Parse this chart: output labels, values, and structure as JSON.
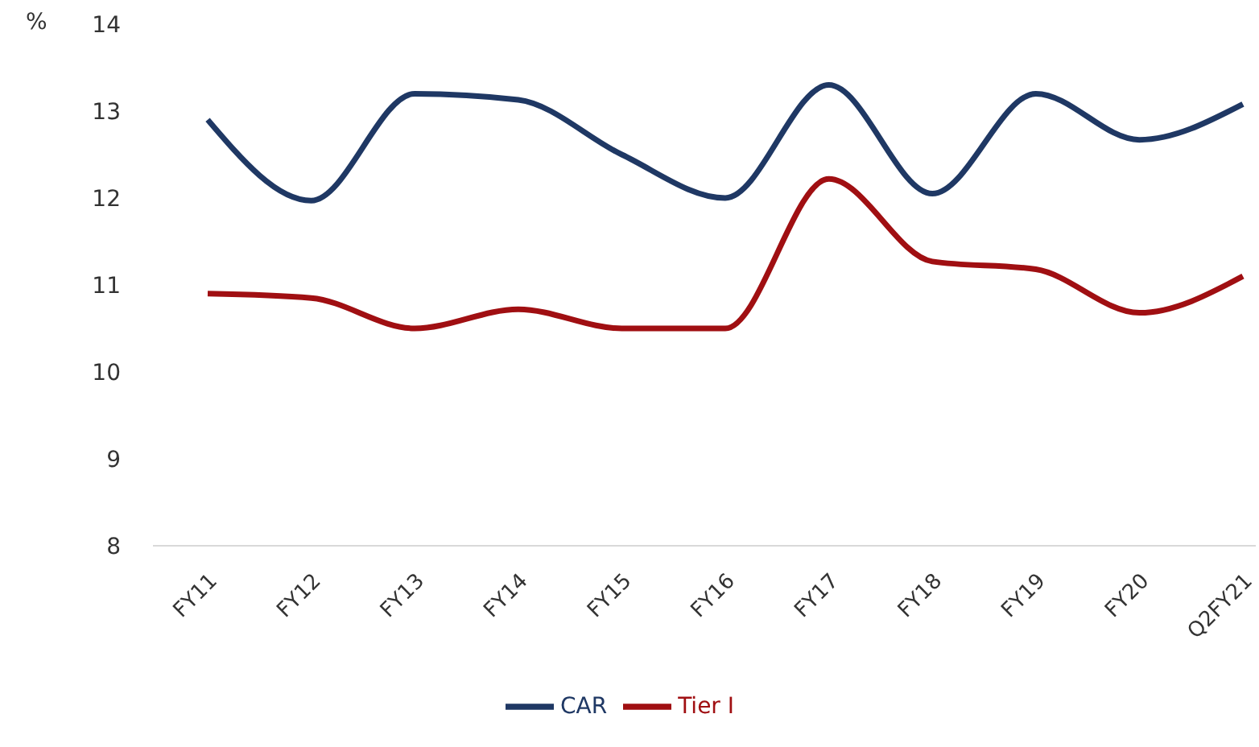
{
  "chart_data": {
    "type": "line",
    "ylabel": "%",
    "categories": [
      "FY11",
      "FY12",
      "FY13",
      "FY14",
      "FY15",
      "FY16",
      "FY17",
      "FY18",
      "FY19",
      "FY20",
      "Q2FY21"
    ],
    "series": [
      {
        "name": "CAR",
        "color": "#1f3864",
        "values": [
          12.9,
          11.97,
          13.2,
          13.13,
          12.5,
          12.0,
          13.3,
          12.05,
          13.2,
          12.67,
          13.08
        ]
      },
      {
        "name": "Tier I",
        "color": "#a00f12",
        "values": [
          10.9,
          10.85,
          10.5,
          10.72,
          10.5,
          10.5,
          12.22,
          11.27,
          11.18,
          10.68,
          11.1
        ]
      }
    ],
    "ylim": [
      8,
      14
    ],
    "yticks": [
      8,
      9,
      10,
      11,
      12,
      13,
      14
    ],
    "grid": false,
    "legend": "bottom",
    "marker": "none",
    "line_style": "solid"
  }
}
